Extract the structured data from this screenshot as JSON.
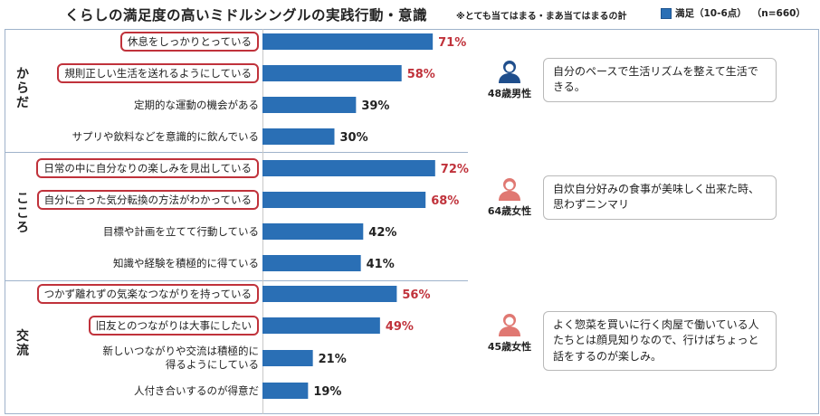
{
  "title": "くらしの満足度の高いミドルシングルの実践行動・意識",
  "note": "※とても当てはまる・まあ当てはまるの計",
  "legend": {
    "label": "満足（10-6点）",
    "n": "（n=660）",
    "color": "#2a6fb5"
  },
  "highlight_color": "#c0323b",
  "chart_data": {
    "type": "bar",
    "orientation": "horizontal",
    "unit": "%",
    "xlim": [
      0,
      100
    ],
    "groups": [
      {
        "label": "からだ",
        "items": [
          {
            "label": "休息をしっかりとっている",
            "value": 71,
            "highlight": true
          },
          {
            "label": "規則正しい生活を送れるようにしている",
            "value": 58,
            "highlight": true
          },
          {
            "label": "定期的な運動の機会がある",
            "value": 39,
            "highlight": false
          },
          {
            "label": "サプリや飲料などを意識的に飲んでいる",
            "value": 30,
            "highlight": false
          }
        ]
      },
      {
        "label": "こころ",
        "items": [
          {
            "label": "日常の中に自分なりの楽しみを見出している",
            "value": 72,
            "highlight": true
          },
          {
            "label": "自分に合った気分転換の方法がわかっている",
            "value": 68,
            "highlight": true
          },
          {
            "label": "目標や計画を立てて行動している",
            "value": 42,
            "highlight": false
          },
          {
            "label": "知識や経験を積極的に得ている",
            "value": 41,
            "highlight": false
          }
        ]
      },
      {
        "label": "交流",
        "items": [
          {
            "label": "つかず離れずの気楽なつながりを持っている",
            "value": 56,
            "highlight": true
          },
          {
            "label": "旧友とのつながりは大事にしたい",
            "value": 49,
            "highlight": true
          },
          {
            "label": "新しいつながりや交流は積極的に\n得るようにしている",
            "value": 21,
            "highlight": false
          },
          {
            "label": "人付き合いするのが得意だ",
            "value": 19,
            "highlight": false
          }
        ]
      }
    ]
  },
  "testimonials": [
    {
      "who": "48歳男性",
      "icon": "man-icon",
      "color": "#1f4e8c",
      "quote": "自分のペースで生活リズムを整えて生活できる。"
    },
    {
      "who": "64歳女性",
      "icon": "woman-icon",
      "color": "#e07872",
      "quote": "自炊自分好みの食事が美味しく出来た時、思わずニンマリ"
    },
    {
      "who": "45歳女性",
      "icon": "woman-icon",
      "color": "#e07872",
      "quote": "よく惣菜を買いに行く肉屋で働いている人たちとは顔見知りなので、行けばちょっと話をするのが楽しみ。"
    }
  ]
}
